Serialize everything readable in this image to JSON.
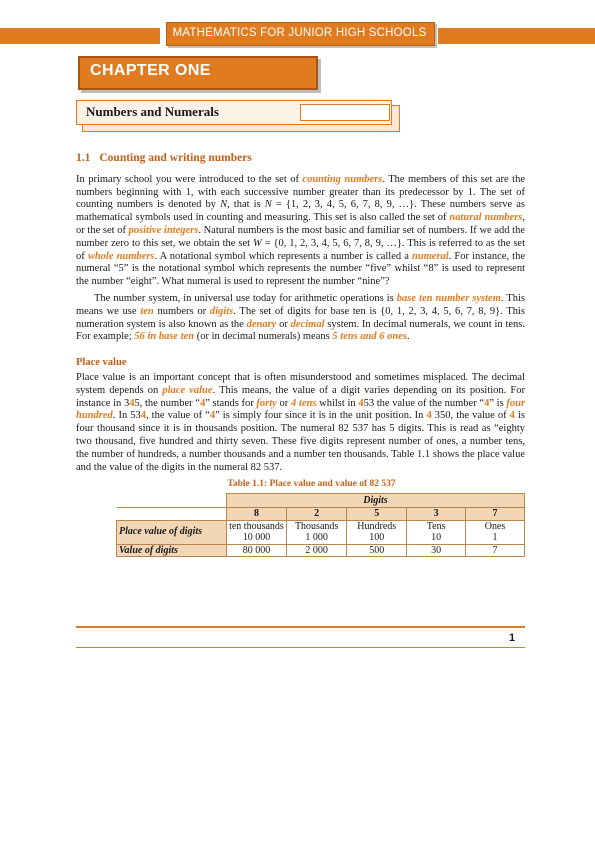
{
  "header": {
    "title": "MATHEMATICS FOR JUNIOR HIGH SCHOOLS"
  },
  "chapter": {
    "title": "CHAPTER ONE"
  },
  "section": {
    "title": "Numbers and Numerals"
  },
  "subsection": {
    "number": "1.1",
    "title": "Counting and writing numbers"
  },
  "p1": {
    "t1": "In primary school you were introduced to the set of ",
    "k1": "counting numbers",
    "t2": ". The members of this set are the numbers beginning with 1, with each successive number greater than its predecessor by 1. The set of counting numbers is denoted by ",
    "N": "N",
    "t3": ", that is ",
    "N2": "N",
    "t4": " = {1, 2, 3, 4, 5, 6, 7, 8, 9, …}. These numbers serve as mathematical symbols used in counting and measuring. This set is also called the set of ",
    "k2": "natural numbers",
    "t5": ", or the set of ",
    "k3": "positive integers",
    "t6": ". Natural numbers is the most basic and familiar set of numbers. If we add the number zero to this set, we obtain the set ",
    "W": "W",
    "t7": " = {0, 1, 2, 3, 4, 5, 6, 7, 8, 9, …}. This is referred to as the set of ",
    "k4": "whole numbers",
    "t8": ". A notational symbol which represents a number is called a ",
    "k5": "numeral",
    "t9": ". For instance, the numeral “5” is the notational symbol which represents the number “five” whilst “8” is used to represent the number “eight”. What numeral is used to represent the number “nine”?"
  },
  "p2": {
    "t1": "The number system, in universal use today for arithmetic operations is ",
    "k1": "base ten number system",
    "t2": ". This means we use ",
    "k2": "ten",
    "t3": " numbers or ",
    "k3": "digits",
    "t4": ". The set of digits for base ten is {0, 1, 2, 3, 4, 5, 6, 7, 8, 9}. This numeration system is also known as the ",
    "k4": "denary",
    "t5": " or ",
    "k5": "decimal",
    "t6": " system. In decimal numerals, we count in tens. For example; ",
    "k6": "56 in base ten",
    "t7": " (or in decimal numerals) means ",
    "k7": "5 tens and 6 ones",
    "t8": "."
  },
  "place_value": {
    "heading": "Place value",
    "t1": "Place value is an important concept that is often misunderstood and sometimes misplaced. The decimal system depends on ",
    "k1": "place value",
    "t2": ". This means, the value of a digit varies depending on its position. For instance in 3",
    "d1": "4",
    "t3": "5, the number “",
    "d2": "4",
    "t4": "” stands for ",
    "k2": "forty",
    "t5": " or ",
    "k3": "4 tens",
    "t6": " whilst in ",
    "d3": "4",
    "t7": "53 the value of the number “",
    "d4": "4",
    "t8": "” is ",
    "k4": "four hundred",
    "t9": ". In 53",
    "d5": "4",
    "t10": ", the value of “",
    "d6": "4",
    "t11": "” is simply four since it is in the unit position. In ",
    "d7": "4",
    "t12": " 350, the value of ",
    "d8": "4",
    "t13": " is four thousand since it is in thousands position.     The numeral 82 537 has 5 digits. This is read as “eighty two thousand, five hundred and thirty seven. These five digits represent number of ones, a number tens, the number of hundreds, a number thousands and a number ten thousands. Table 1.1 shows the place value and the value of the digits in the numeral 82 537."
  },
  "table": {
    "caption": "Table 1.1:    Place value and value of 82 537",
    "group_header": "Digits",
    "digits": [
      "8",
      "2",
      "5",
      "3",
      "7"
    ],
    "rows": [
      {
        "label": "Place value of digits",
        "cells": [
          {
            "name": "ten thousands",
            "value": "10 000"
          },
          {
            "name": "Thousands",
            "value": "1 000"
          },
          {
            "name": "Hundreds",
            "value": "100"
          },
          {
            "name": "Tens",
            "value": "10"
          },
          {
            "name": "Ones",
            "value": "1"
          }
        ]
      },
      {
        "label": "Value of digits",
        "cells": [
          "80 000",
          "2 000",
          "500",
          "30",
          "7"
        ]
      }
    ]
  },
  "footer": {
    "page_number": "1"
  },
  "colors": {
    "accent": "#e07b1f",
    "heading": "#c2601a",
    "table_fill": "#f3d6b6"
  }
}
